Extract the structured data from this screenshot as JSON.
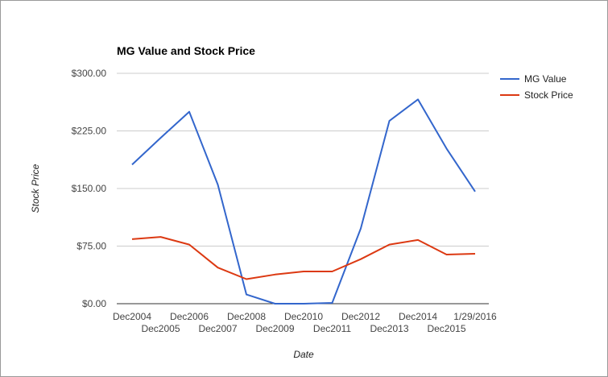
{
  "chart_data": {
    "type": "line",
    "title": "MG Value and Stock Price",
    "xlabel": "Date",
    "ylabel": "Stock Price",
    "ylim": [
      0,
      300
    ],
    "y_ticks": [
      "$0.00",
      "$75.00",
      "$150.00",
      "$225.00",
      "$300.00"
    ],
    "y_tick_values": [
      0,
      75,
      150,
      225,
      300
    ],
    "grid": true,
    "legend_position": "right",
    "categories": [
      "Dec2004",
      "Dec2005",
      "Dec2006",
      "Dec2007",
      "Dec2008",
      "Dec2009",
      "Dec2010",
      "Dec2011",
      "Dec2012",
      "Dec2013",
      "Dec2014",
      "Dec2015",
      "1/29/2016"
    ],
    "series": [
      {
        "name": "MG Value",
        "color": "#3366cc",
        "values": [
          181,
          216,
          250,
          155,
          12,
          0,
          0,
          1,
          98,
          238,
          266,
          202,
          146
        ]
      },
      {
        "name": "Stock Price",
        "color": "#dc3912",
        "values": [
          84,
          87,
          77,
          47,
          32,
          38,
          42,
          42,
          58,
          77,
          83,
          64,
          65
        ]
      }
    ]
  }
}
